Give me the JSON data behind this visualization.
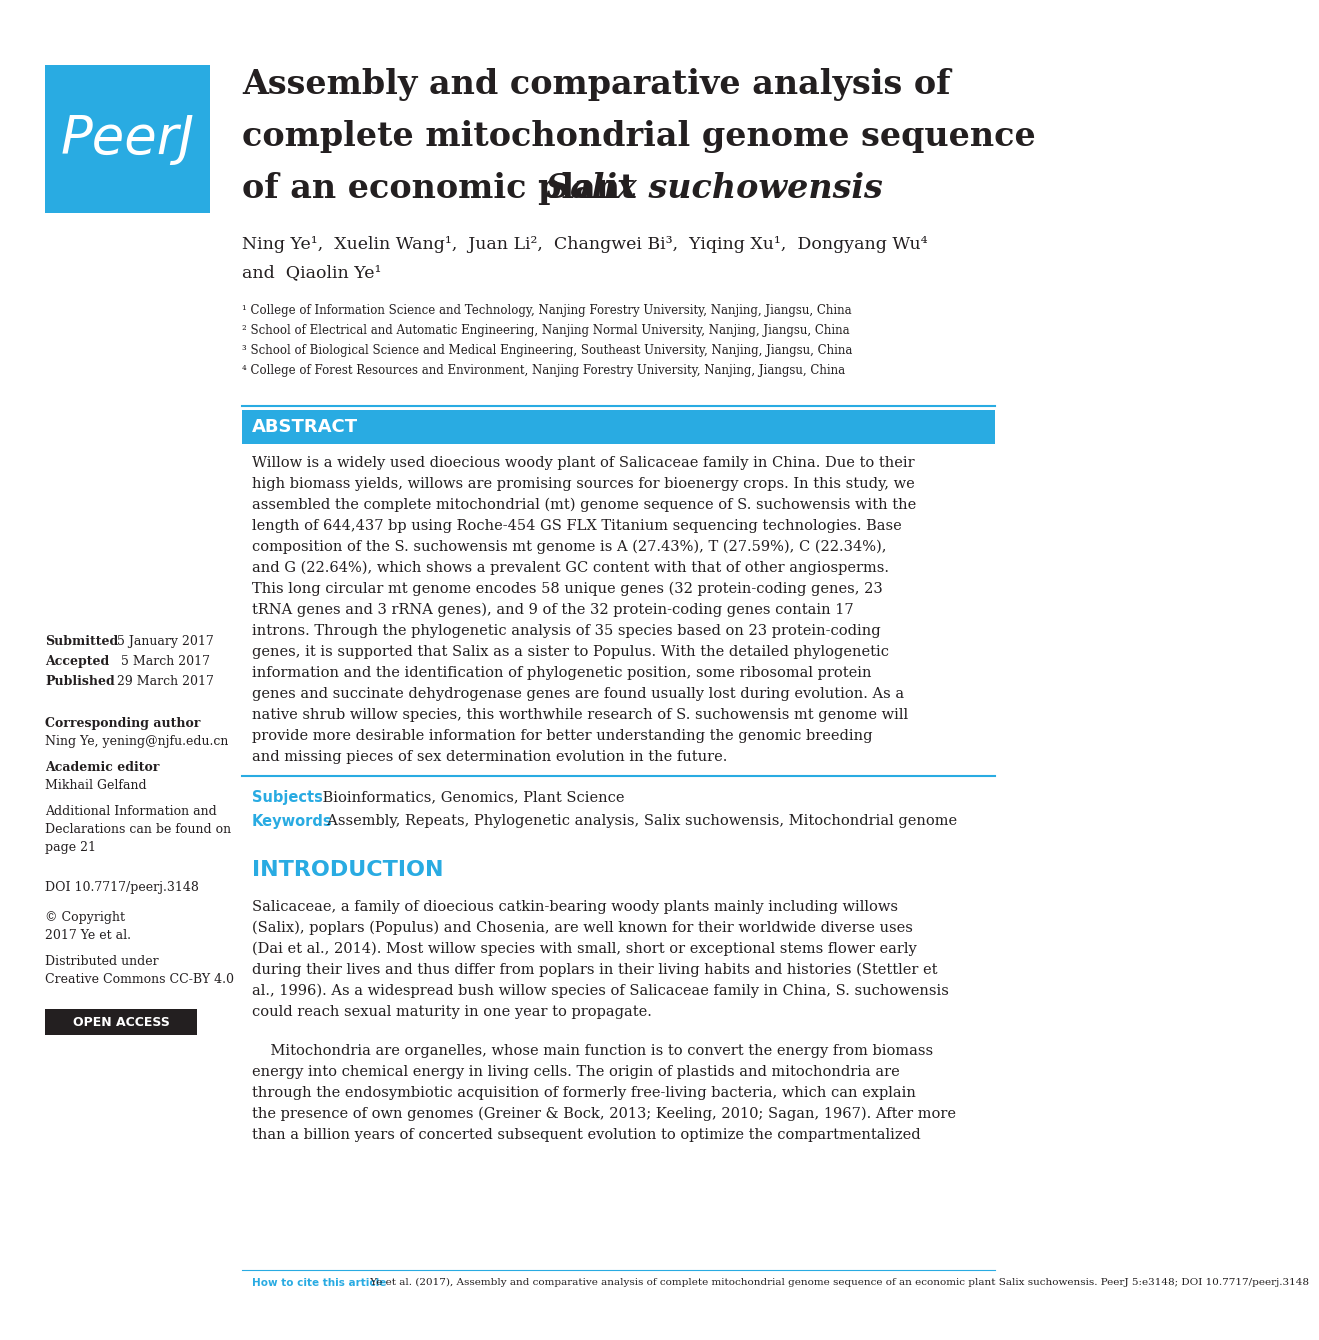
{
  "bg_color": "#ffffff",
  "blue": "#29ABE2",
  "dark": "#231F20",
  "title_line1": "Assembly and comparative analysis of",
  "title_line2": "complete mitochondrial genome sequence",
  "title_line3_normal": "of an economic plant ",
  "title_line3_italic": "Salix suchowensis",
  "authors_line1": "Ning Ye¹,  Xuelin Wang¹,  Juan Li²,  Changwei Bi³,  Yiqing Xu¹,  Dongyang Wu⁴",
  "authors_line2": "and  Qiaolin Ye¹",
  "affil1": "¹ College of Information Science and Technology, Nanjing Forestry University, Nanjing, Jiangsu, China",
  "affil2": "² School of Electrical and Automatic Engineering, Nanjing Normal University, Nanjing, Jiangsu, China",
  "affil3": "³ School of Biological Science and Medical Engineering, Southeast University, Nanjing, Jiangsu, China",
  "affil4": "⁴ College of Forest Resources and Environment, Nanjing Forestry University, Nanjing, Jiangsu, China",
  "abstract_header": "ABSTRACT",
  "abstract_lines": [
    "Willow is a widely used dioecious woody plant of Salicaceae family in China. Due to their",
    "high biomass yields, willows are promising sources for bioenergy crops. In this study, we",
    "assembled the complete mitochondrial (mt) genome sequence of S. suchowensis with the",
    "length of 644,437 bp using Roche-454 GS FLX Titanium sequencing technologies. Base",
    "composition of the S. suchowensis mt genome is A (27.43%), T (27.59%), C (22.34%),",
    "and G (22.64%), which shows a prevalent GC content with that of other angiosperms.",
    "This long circular mt genome encodes 58 unique genes (32 protein-coding genes, 23",
    "tRNA genes and 3 rRNA genes), and 9 of the 32 protein-coding genes contain 17",
    "introns. Through the phylogenetic analysis of 35 species based on 23 protein-coding",
    "genes, it is supported that Salix as a sister to Populus. With the detailed phylogenetic",
    "information and the identification of phylogenetic position, some ribosomal protein",
    "genes and succinate dehydrogenase genes are found usually lost during evolution. As a",
    "native shrub willow species, this worthwhile research of S. suchowensis mt genome will",
    "provide more desirable information for better understanding the genomic breeding",
    "and missing pieces of sex determination evolution in the future."
  ],
  "subjects_label": "Subjects",
  "subjects_text": " Bioinformatics, Genomics, Plant Science",
  "keywords_label": "Keywords",
  "keywords_text": "  Assembly, Repeats, Phylogenetic analysis, Salix suchowensis, Mitochondrial genome",
  "intro_header": "INTRODUCTION",
  "intro1_lines": [
    "Salicaceae, a family of dioecious catkin-bearing woody plants mainly including willows",
    "(Salix), poplars (Populus) and Chosenia, are well known for their worldwide diverse uses",
    "(Dai et al., 2014). Most willow species with small, short or exceptional stems flower early",
    "during their lives and thus differ from poplars in their living habits and histories (Stettler et",
    "al., 1996). As a widespread bush willow species of Salicaceae family in China, S. suchowensis",
    "could reach sexual maturity in one year to propagate."
  ],
  "intro2_lines": [
    "    Mitochondria are organelles, whose main function is to convert the energy from biomass",
    "energy into chemical energy in living cells. The origin of plastids and mitochondria are",
    "through the endosymbiotic acquisition of formerly free-living bacteria, which can explain",
    "the presence of own genomes (Greiner & Bock, 2013; Keeling, 2010; Sagan, 1967). After more",
    "than a billion years of concerted subsequent evolution to optimize the compartmentalized"
  ],
  "left_date1_bold": "Submitted",
  "left_date1_rest": " 5 January 2017",
  "left_date2_bold": "Accepted",
  "left_date2_rest": "  5 March 2017",
  "left_date3_bold": "Published",
  "left_date3_rest": " 29 March 2017",
  "left_corr_header": "Corresponding author",
  "left_corr": "Ning Ye, yening@njfu.edu.cn",
  "left_editor_header": "Academic editor",
  "left_editor": "Mikhail Gelfand",
  "left_addinfo": [
    "Additional Information and",
    "Declarations can be found on",
    "page 21"
  ],
  "left_doi": "DOI 10.7717/peerj.3148",
  "left_copy_icon": "© Copyright",
  "left_copy": "2017 Ye et al.",
  "left_dist": [
    "Distributed under",
    "Creative Commons CC-BY 4.0"
  ],
  "open_access": "OPEN ACCESS",
  "cite_label": "How to cite this article",
  "cite_text": " Ye et al. (2017), Assembly and comparative analysis of complete mitochondrial genome sequence of an economic plant Salix suchowensis. PeerJ 5:e3148; DOI 10.7717/peerj.3148"
}
